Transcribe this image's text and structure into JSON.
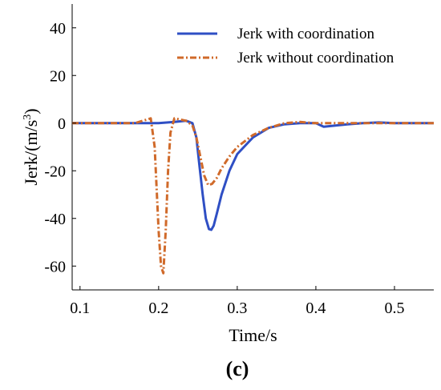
{
  "chart_data": {
    "type": "line",
    "title": "",
    "xlabel": "Time/s",
    "ylabel": "Jerk/(m/s",
    "ylabel_sup": "3",
    "ylabel_close": ")",
    "xlim": [
      0.09,
      0.55
    ],
    "ylim": [
      -70,
      50
    ],
    "xticks": [
      0.1,
      0.2,
      0.3,
      0.4,
      0.5
    ],
    "xtick_labels": [
      "0.1",
      "0.2",
      "0.3",
      "0.4",
      "0.5"
    ],
    "yticks": [
      -60,
      -40,
      -20,
      0,
      20,
      40
    ],
    "ytick_labels": [
      "-60",
      "-40",
      "-20",
      "0",
      "20",
      "40"
    ],
    "grid": false,
    "legend_position": "top-right",
    "panel_label": "(c)",
    "series": [
      {
        "name": "Jerk with coordination",
        "color": "#2f4fc4",
        "dash": "solid",
        "x": [
          0.09,
          0.15,
          0.2,
          0.22,
          0.235,
          0.243,
          0.248,
          0.252,
          0.256,
          0.26,
          0.264,
          0.267,
          0.27,
          0.274,
          0.28,
          0.29,
          0.3,
          0.32,
          0.34,
          0.36,
          0.38,
          0.4,
          0.41,
          0.42,
          0.44,
          0.46,
          0.48,
          0.5,
          0.52,
          0.55
        ],
        "y": [
          0,
          0,
          0,
          0.5,
          1,
          0,
          -6,
          -18,
          -30,
          -40,
          -44.5,
          -44.8,
          -43,
          -38,
          -30,
          -20,
          -13,
          -6,
          -2,
          -0.5,
          0,
          0,
          -1.5,
          -1.2,
          -0.5,
          0,
          0.3,
          0,
          0,
          0
        ]
      },
      {
        "name": "Jerk without coordination",
        "color": "#d06a2a",
        "dash": "8,3,2,3",
        "x": [
          0.09,
          0.17,
          0.19,
          0.195,
          0.2,
          0.203,
          0.206,
          0.209,
          0.212,
          0.215,
          0.22,
          0.235,
          0.243,
          0.248,
          0.253,
          0.258,
          0.263,
          0.268,
          0.274,
          0.28,
          0.29,
          0.3,
          0.32,
          0.34,
          0.36,
          0.38,
          0.4,
          0.42,
          0.44,
          0.46,
          0.48,
          0.5,
          0.55
        ],
        "y": [
          0,
          0,
          2,
          -10,
          -45,
          -60,
          -63,
          -45,
          -20,
          -4,
          2,
          1,
          -1,
          -6,
          -14,
          -22,
          -26,
          -25.5,
          -23,
          -19,
          -14,
          -10,
          -5,
          -2,
          0,
          0.5,
          0,
          0,
          0,
          0,
          0,
          0,
          0
        ]
      }
    ]
  }
}
